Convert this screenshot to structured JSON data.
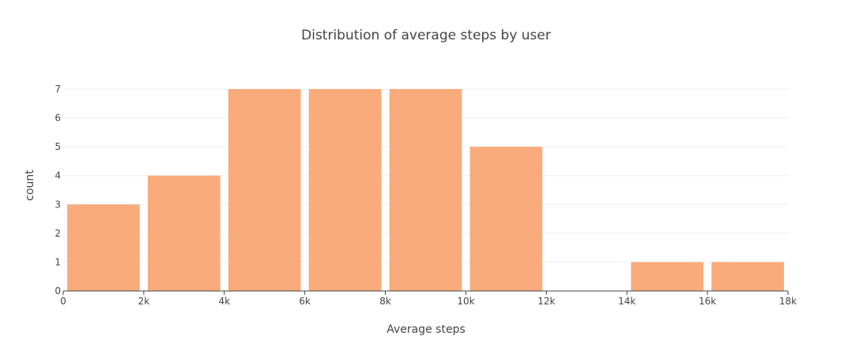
{
  "chart_data": {
    "type": "bar",
    "title": "Distribution of average steps by user",
    "xlabel": "Average steps",
    "ylabel": "count",
    "bins": [
      {
        "start": 0,
        "end": 2000,
        "count": 3
      },
      {
        "start": 2000,
        "end": 4000,
        "count": 4
      },
      {
        "start": 4000,
        "end": 6000,
        "count": 7
      },
      {
        "start": 6000,
        "end": 8000,
        "count": 7
      },
      {
        "start": 8000,
        "end": 10000,
        "count": 7
      },
      {
        "start": 10000,
        "end": 12000,
        "count": 5
      },
      {
        "start": 12000,
        "end": 14000,
        "count": 0
      },
      {
        "start": 14000,
        "end": 16000,
        "count": 1
      },
      {
        "start": 16000,
        "end": 18000,
        "count": 1
      }
    ],
    "xlim": [
      0,
      18000
    ],
    "ylim": [
      0,
      7
    ],
    "x_ticks": [
      {
        "value": 0,
        "label": "0"
      },
      {
        "value": 2000,
        "label": "2k"
      },
      {
        "value": 4000,
        "label": "4k"
      },
      {
        "value": 6000,
        "label": "6k"
      },
      {
        "value": 8000,
        "label": "8k"
      },
      {
        "value": 10000,
        "label": "10k"
      },
      {
        "value": 12000,
        "label": "12k"
      },
      {
        "value": 14000,
        "label": "14k"
      },
      {
        "value": 16000,
        "label": "16k"
      },
      {
        "value": 18000,
        "label": "18k"
      }
    ],
    "y_ticks": [
      {
        "value": 0,
        "label": "0"
      },
      {
        "value": 1,
        "label": "1"
      },
      {
        "value": 2,
        "label": "2"
      },
      {
        "value": 3,
        "label": "3"
      },
      {
        "value": 4,
        "label": "4"
      },
      {
        "value": 5,
        "label": "5"
      },
      {
        "value": 6,
        "label": "6"
      },
      {
        "value": 7,
        "label": "7"
      }
    ],
    "grid": true,
    "bar_color": "#FAAB7B",
    "legend": "none"
  }
}
